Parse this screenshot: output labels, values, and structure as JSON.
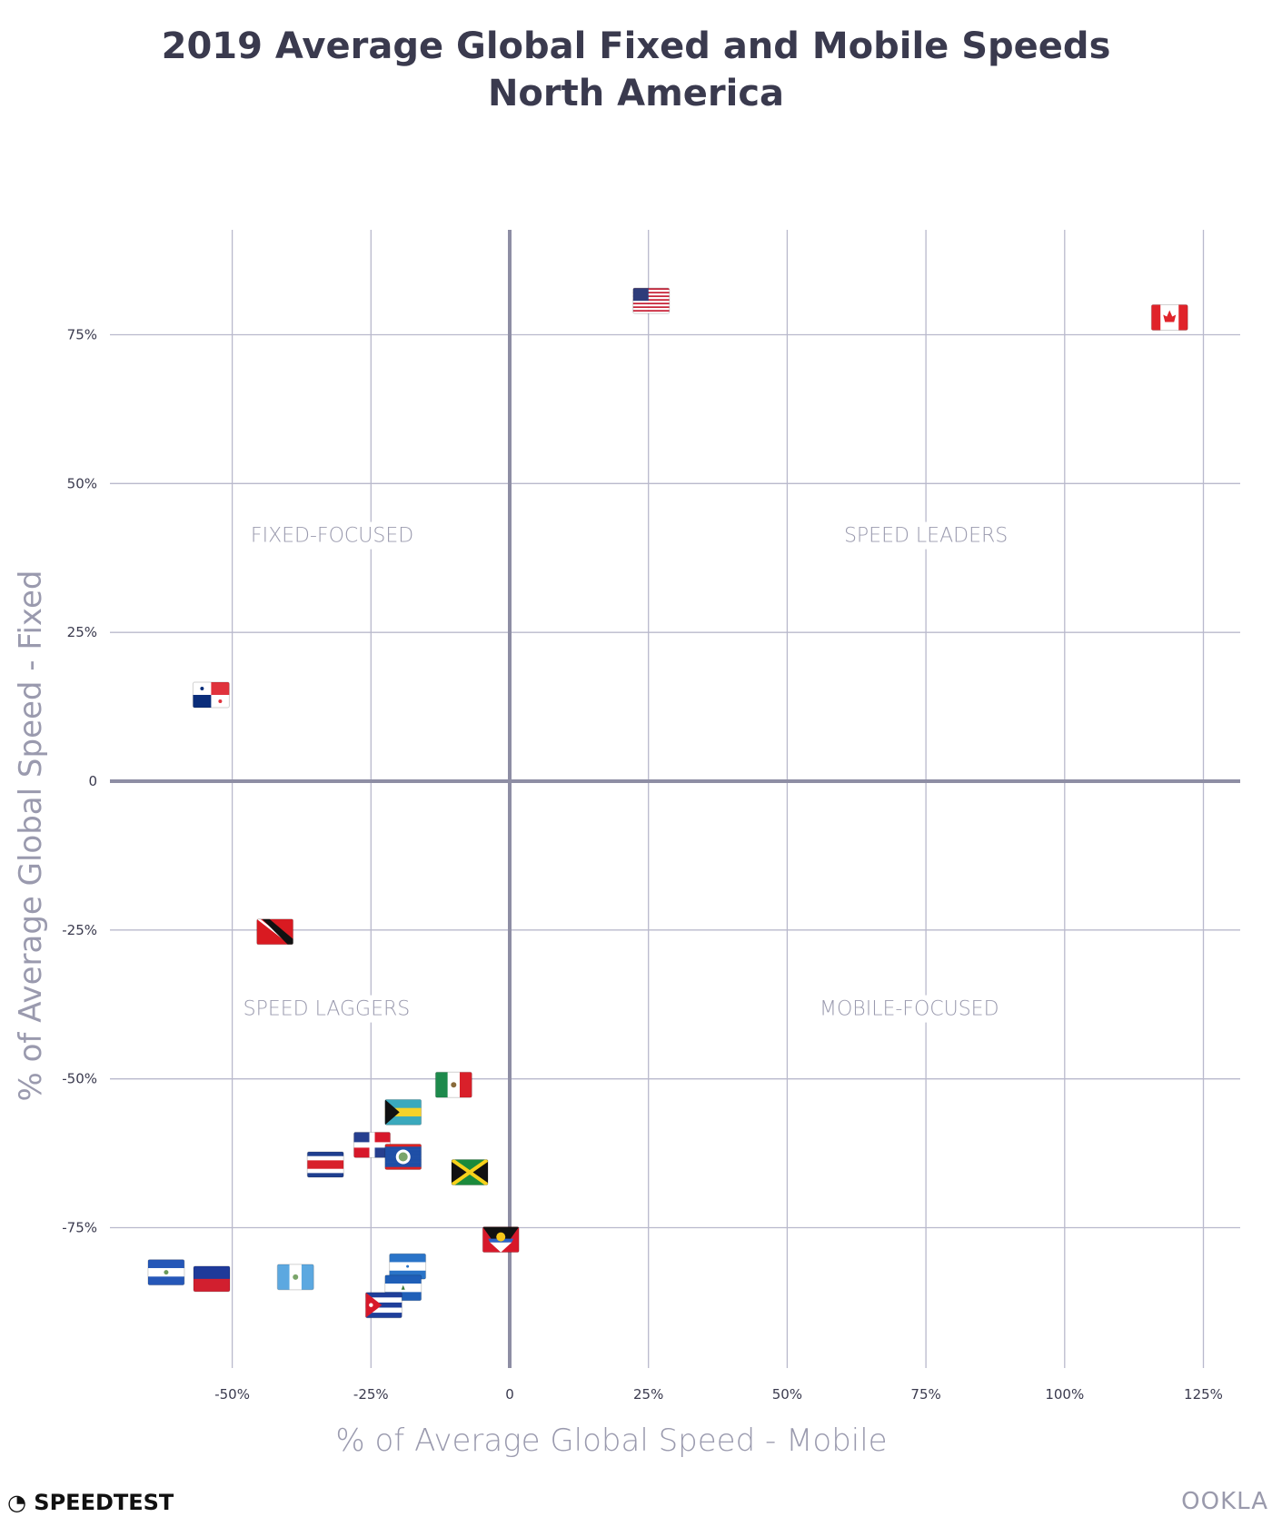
{
  "chart_data": {
    "type": "scatter",
    "title": "2019 Average Global Fixed and Mobile Speeds",
    "subtitle": "North America",
    "xlabel": "% of Average Global Speed - Mobile",
    "ylabel": "% of Average Global Speed - Fixed",
    "xlim": [
      -66,
      133
    ],
    "ylim": [
      -98,
      92
    ],
    "grid": true,
    "x_ticks": [
      -50,
      -25,
      0,
      25,
      50,
      75,
      100,
      125
    ],
    "x_tick_labels": [
      "-50%",
      "-25%",
      "0",
      "25%",
      "50%",
      "75%",
      "100%",
      "125%"
    ],
    "y_ticks": [
      75,
      50,
      25,
      0,
      -25,
      -50,
      -75
    ],
    "y_tick_labels": [
      "75%",
      "50%",
      "25%",
      "0",
      "-25%",
      "-50%",
      "-75%"
    ],
    "quadrant_labels": [
      {
        "text": "FIXED-FOCUSED",
        "x": -32,
        "y": 40.5
      },
      {
        "text": "SPEED LEADERS",
        "x": 75,
        "y": 40.5
      },
      {
        "text": "SPEED LAGGERS",
        "x": -33,
        "y": -39
      },
      {
        "text": "MOBILE-FOCUSED",
        "x": 72,
        "y": -39
      }
    ],
    "points": [
      {
        "flag": "united-states",
        "x": 25.5,
        "y": 80.7
      },
      {
        "flag": "canada",
        "x": 118.9,
        "y": 77.9
      },
      {
        "flag": "panama",
        "x": -53.8,
        "y": 14.5
      },
      {
        "flag": "trinidad-and-tobago",
        "x": -42.3,
        "y": -25.3
      },
      {
        "flag": "mexico",
        "x": -10.1,
        "y": -51.0
      },
      {
        "flag": "bahamas",
        "x": -19.2,
        "y": -55.6
      },
      {
        "flag": "dominican-republic",
        "x": -24.8,
        "y": -61.1
      },
      {
        "flag": "belize",
        "x": -19.2,
        "y": -63.1
      },
      {
        "flag": "costa-rica",
        "x": -33.2,
        "y": -64.4
      },
      {
        "flag": "jamaica",
        "x": -7.2,
        "y": -65.7
      },
      {
        "flag": "antigua-and-barbuda",
        "x": -1.6,
        "y": -77.0
      },
      {
        "flag": "el-salvador",
        "x": -61.9,
        "y": -82.5
      },
      {
        "flag": "haiti",
        "x": -53.7,
        "y": -83.6
      },
      {
        "flag": "guatemala",
        "x": -38.6,
        "y": -83.3
      },
      {
        "flag": "honduras",
        "x": -18.4,
        "y": -81.5
      },
      {
        "flag": "nicaragua",
        "x": -19.2,
        "y": -85.1
      },
      {
        "flag": "cuba",
        "x": -22.7,
        "y": -88.0
      }
    ]
  },
  "branding": {
    "left_logo": "SPEEDTEST",
    "right_logo": "OOKLA"
  },
  "colors": {
    "grid": "#b9b9cc",
    "axis": "#8e8ea4",
    "label": "#9a9aae",
    "title": "#3a3a4e"
  }
}
